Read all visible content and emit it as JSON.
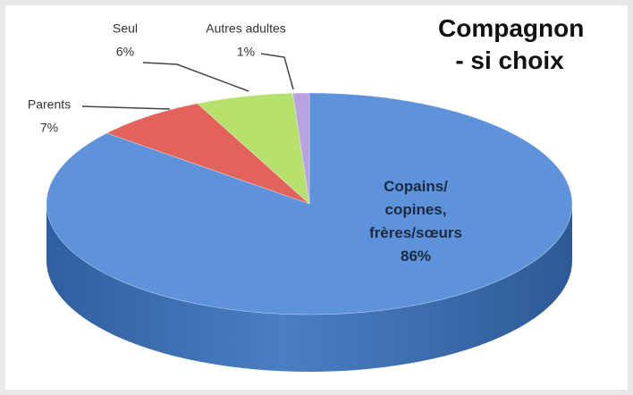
{
  "chart_data": {
    "type": "pie3d",
    "title": "Compagnon - si choix",
    "categories": [
      "Copains/ copines, frères/sœurs",
      "Parents",
      "Seul",
      "Autres adultes"
    ],
    "values": [
      86,
      7,
      6,
      1
    ],
    "value_labels": [
      "86%",
      "7%",
      "6%",
      "1%"
    ],
    "colors": [
      "#5e93dc",
      "#e2625c",
      "#b6e16c",
      "#b9a2e2"
    ]
  }
}
